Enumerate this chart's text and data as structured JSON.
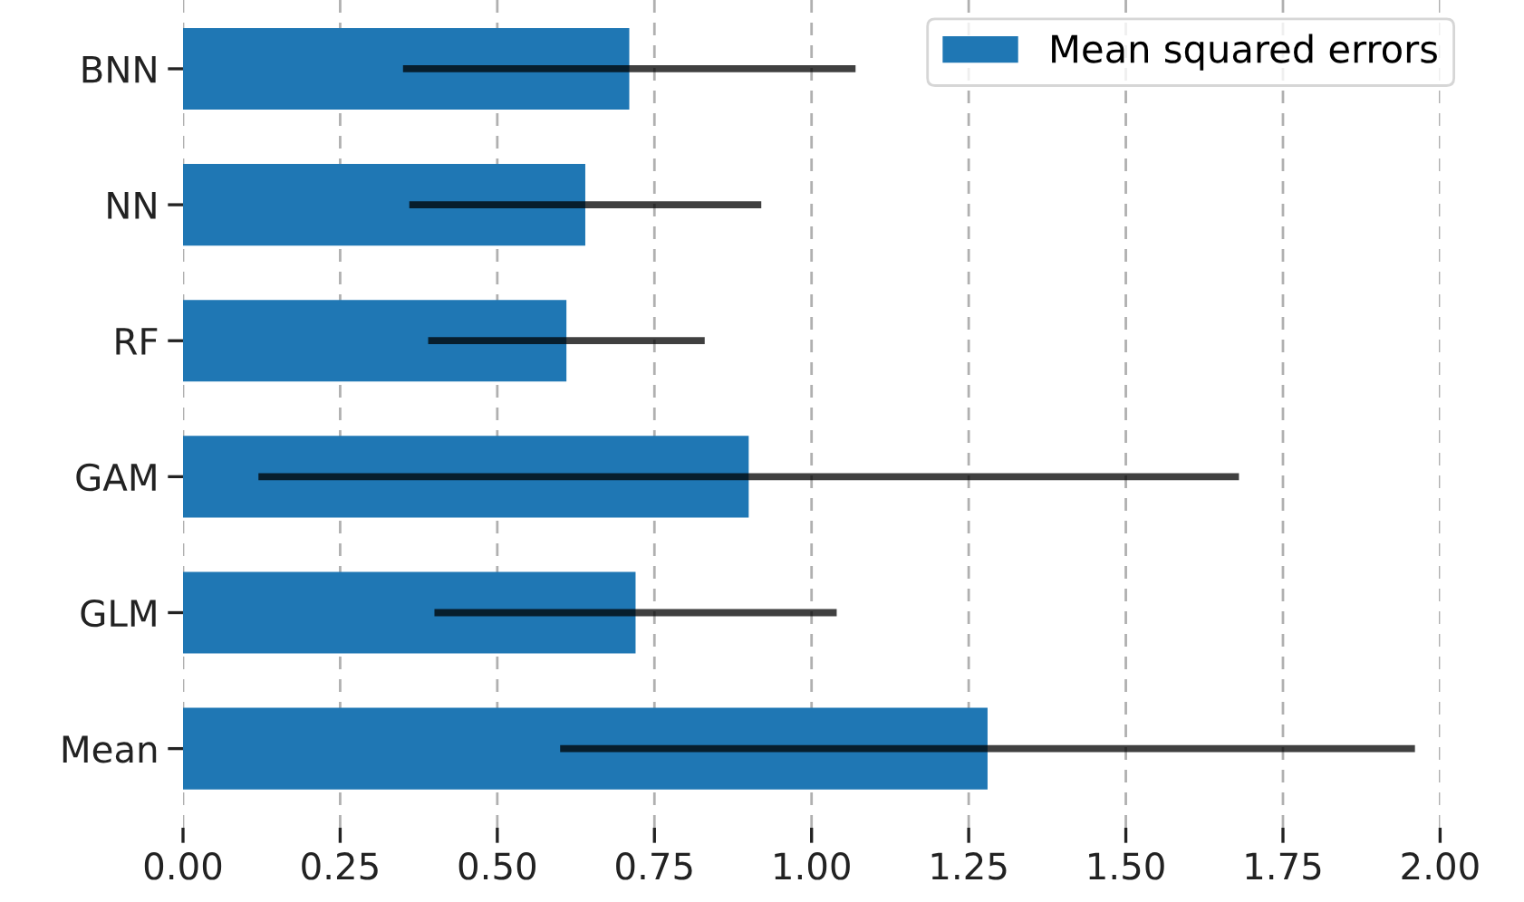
{
  "chart_data": {
    "type": "bar",
    "orientation": "horizontal",
    "categories": [
      "BNN",
      "NN",
      "RF",
      "GAM",
      "GLM",
      "Mean"
    ],
    "series": [
      {
        "name": "Mean squared errors",
        "color": "#1f77b4",
        "values": [
          0.71,
          0.64,
          0.61,
          0.9,
          0.72,
          1.28
        ],
        "errors": [
          0.36,
          0.28,
          0.22,
          0.78,
          0.32,
          0.68
        ]
      }
    ],
    "xlim": [
      0,
      2.0
    ],
    "xticks": [
      {
        "value": 0,
        "label": "0.00"
      },
      {
        "value": 0.25,
        "label": "0.25"
      },
      {
        "value": 0.5,
        "label": "0.50"
      },
      {
        "value": 0.75,
        "label": "0.75"
      },
      {
        "value": 1.0,
        "label": "1.00"
      },
      {
        "value": 1.25,
        "label": "1.25"
      },
      {
        "value": 1.5,
        "label": "1.50"
      },
      {
        "value": 1.75,
        "label": "1.75"
      },
      {
        "value": 2.0,
        "label": "2.00"
      }
    ],
    "grid": "x",
    "legend": "top right"
  }
}
